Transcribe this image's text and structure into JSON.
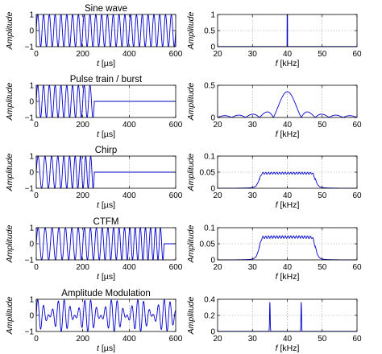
{
  "chart_data": [
    {
      "type": "line",
      "title": "Sine wave",
      "xlabel_italic": "t",
      "xlabel_unit": "[µs]",
      "ylabel": "Amplitude",
      "xlim": [
        0,
        600
      ],
      "ylim": [
        -1,
        1
      ],
      "xticks": [
        0,
        200,
        400,
        600
      ],
      "yticks": [
        -1,
        0,
        1
      ],
      "xtick_labels": [
        "0",
        "200",
        "400",
        "600"
      ],
      "ytick_labels": [
        "−1",
        "0",
        "1"
      ],
      "grid": true,
      "signal": {
        "kind": "sine",
        "frequency_khz": 40,
        "amplitude": 1,
        "duration_us": 600
      },
      "series": [
        {
          "color": "#0000cc"
        }
      ]
    },
    {
      "type": "line",
      "title": "",
      "xlabel_italic": "f",
      "xlabel_unit": "[kHz]",
      "ylabel": "Amplitude",
      "xlim": [
        20,
        60
      ],
      "ylim": [
        0,
        1
      ],
      "xticks": [
        20,
        30,
        40,
        50,
        60
      ],
      "yticks": [
        0,
        0.5,
        1
      ],
      "xtick_labels": [
        "20",
        "30",
        "40",
        "50",
        "60"
      ],
      "ytick_labels": [
        "0",
        "0.5",
        "1"
      ],
      "grid": true,
      "spectrum": {
        "kind": "line",
        "peak_khz": 40,
        "peak_amplitude": 1
      },
      "series": [
        {
          "color": "#0000cc"
        }
      ]
    },
    {
      "type": "line",
      "title": "Pulse train / burst",
      "xlabel_italic": "t",
      "xlabel_unit": "[µs]",
      "ylabel": "Amplitude",
      "xlim": [
        0,
        600
      ],
      "ylim": [
        -1,
        1
      ],
      "xticks": [
        0,
        200,
        400,
        600
      ],
      "yticks": [
        -1,
        0,
        1
      ],
      "xtick_labels": [
        "0",
        "200",
        "400",
        "600"
      ],
      "ytick_labels": [
        "−1",
        "0",
        "1"
      ],
      "grid": true,
      "signal": {
        "kind": "burst",
        "frequency_khz": 40,
        "amplitude": 1,
        "burst_end_us": 250,
        "duration_us": 600
      },
      "series": [
        {
          "color": "#0000cc"
        }
      ]
    },
    {
      "type": "line",
      "title": "",
      "xlabel_italic": "f",
      "xlabel_unit": "[kHz]",
      "ylabel": "Amplitude",
      "xlim": [
        20,
        60
      ],
      "ylim": [
        0,
        0.5
      ],
      "xticks": [
        20,
        30,
        40,
        50,
        60
      ],
      "yticks": [
        0,
        0.5
      ],
      "xtick_labels": [
        "20",
        "30",
        "40",
        "50",
        "60"
      ],
      "ytick_labels": [
        "0",
        "0.5"
      ],
      "grid": true,
      "spectrum": {
        "kind": "sinc",
        "center_khz": 40,
        "peak_amplitude": 0.4,
        "burst_us": 250
      },
      "series": [
        {
          "color": "#0000cc"
        }
      ]
    },
    {
      "type": "line",
      "title": "Chirp",
      "xlabel_italic": "t",
      "xlabel_unit": "[µs]",
      "ylabel": "Amplitude",
      "xlim": [
        0,
        600
      ],
      "ylim": [
        -1,
        1
      ],
      "xticks": [
        0,
        200,
        400,
        600
      ],
      "yticks": [
        -1,
        0,
        1
      ],
      "xtick_labels": [
        "0",
        "200",
        "400",
        "600"
      ],
      "ytick_labels": [
        "−1",
        "0",
        "1"
      ],
      "grid": true,
      "signal": {
        "kind": "chirp",
        "f_start_khz": 32,
        "f_end_khz": 48,
        "amplitude": 1,
        "burst_end_us": 250,
        "duration_us": 600
      },
      "series": [
        {
          "color": "#0000cc"
        }
      ]
    },
    {
      "type": "line",
      "title": "",
      "xlabel_italic": "f",
      "xlabel_unit": "[kHz]",
      "ylabel": "Amplitude",
      "xlim": [
        20,
        60
      ],
      "ylim": [
        0,
        0.1
      ],
      "xticks": [
        20,
        30,
        40,
        50,
        60
      ],
      "yticks": [
        0,
        0.05,
        0.1
      ],
      "xtick_labels": [
        "20",
        "30",
        "40",
        "50",
        "60"
      ],
      "ytick_labels": [
        "0",
        "0.05",
        "0.1"
      ],
      "grid": true,
      "spectrum": {
        "kind": "band",
        "low_khz": 32,
        "high_khz": 48,
        "plateau": 0.047,
        "ripple": 0.003,
        "edge_peak": 0.054
      },
      "series": [
        {
          "color": "#0000cc"
        }
      ]
    },
    {
      "type": "line",
      "title": "CTFM",
      "xlabel_italic": "t",
      "xlabel_unit": "[µs]",
      "ylabel": "Amplitude",
      "xlim": [
        0,
        600
      ],
      "ylim": [
        -1,
        1
      ],
      "xticks": [
        0,
        200,
        400,
        600
      ],
      "yticks": [
        -1,
        0,
        1
      ],
      "xtick_labels": [
        "0",
        "200",
        "400",
        "600"
      ],
      "ytick_labels": [
        "−1",
        "0",
        "1"
      ],
      "grid": true,
      "signal": {
        "kind": "chirp",
        "f_start_khz": 32,
        "f_end_khz": 48,
        "amplitude": 1,
        "burst_end_us": 550,
        "duration_us": 600
      },
      "series": [
        {
          "color": "#0000cc"
        }
      ]
    },
    {
      "type": "line",
      "title": "",
      "xlabel_italic": "f",
      "xlabel_unit": "[kHz]",
      "ylabel": "Amplitude",
      "xlim": [
        20,
        60
      ],
      "ylim": [
        0,
        0.1
      ],
      "xticks": [
        20,
        30,
        40,
        50,
        60
      ],
      "yticks": [
        0,
        0.05,
        0.1
      ],
      "xtick_labels": [
        "20",
        "30",
        "40",
        "50",
        "60"
      ],
      "ytick_labels": [
        "0",
        "0.05",
        "0.1"
      ],
      "grid": true,
      "spectrum": {
        "kind": "band",
        "low_khz": 32,
        "high_khz": 48,
        "plateau": 0.071,
        "ripple": 0.004,
        "edge_peak": 0.08
      },
      "series": [
        {
          "color": "#0000cc"
        }
      ]
    },
    {
      "type": "line",
      "title": "Amplitude Modulation",
      "xlabel_italic": "t",
      "xlabel_unit": "[µs]",
      "ylabel": "Amplitude",
      "xlim": [
        0,
        600
      ],
      "ylim": [
        -1,
        1
      ],
      "xticks": [
        0,
        200,
        400,
        600
      ],
      "yticks": [
        -1,
        0,
        1
      ],
      "xtick_labels": [
        "0",
        "200",
        "400",
        "600"
      ],
      "ytick_labels": [
        "−1",
        "0",
        "1"
      ],
      "grid": true,
      "signal": {
        "kind": "am",
        "components_khz": [
          35,
          44
        ],
        "amplitude": 1,
        "duration_us": 600
      },
      "series": [
        {
          "color": "#0000cc"
        }
      ]
    },
    {
      "type": "line",
      "title": "",
      "xlabel_italic": "f",
      "xlabel_unit": "[kHz]",
      "ylabel": "Amplitude",
      "xlim": [
        20,
        60
      ],
      "ylim": [
        0,
        0.4
      ],
      "xticks": [
        20,
        30,
        40,
        50,
        60
      ],
      "yticks": [
        0,
        0.2,
        0.4
      ],
      "xtick_labels": [
        "20",
        "30",
        "40",
        "50",
        "60"
      ],
      "ytick_labels": [
        "0",
        "0.2",
        "0.4"
      ],
      "grid": true,
      "spectrum": {
        "kind": "two-lines",
        "peaks_khz": [
          35,
          44
        ],
        "peak_amplitude": 0.36
      },
      "series": [
        {
          "color": "#0000cc"
        }
      ]
    }
  ]
}
